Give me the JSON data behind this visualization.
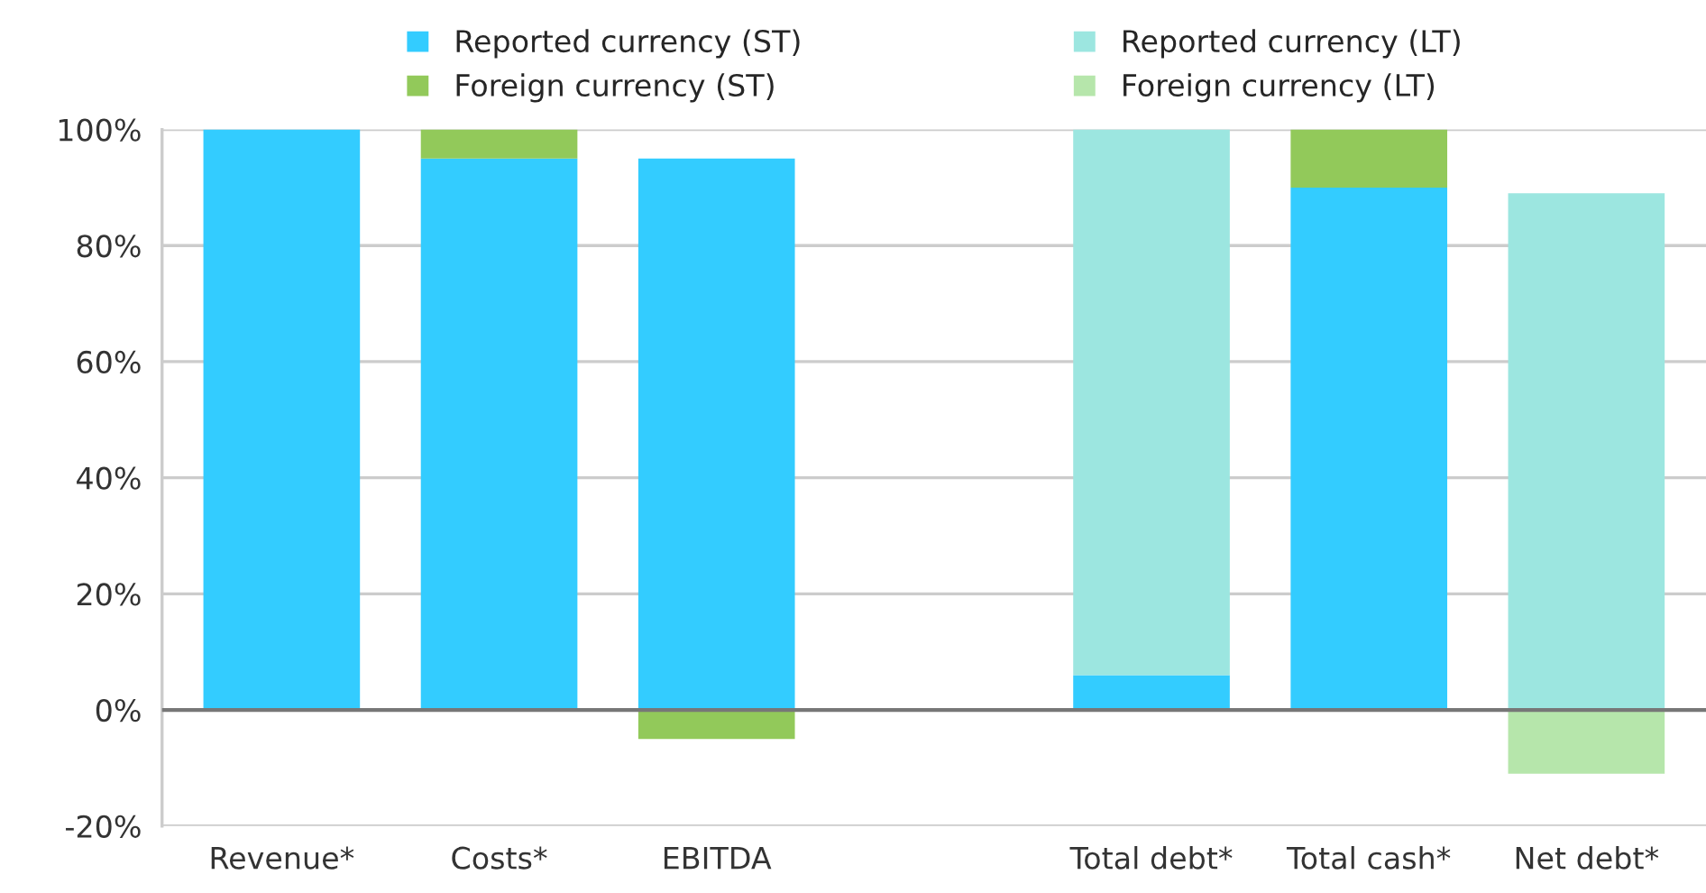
{
  "chart_data": {
    "type": "bar",
    "stacked": true,
    "categories": [
      "Revenue*",
      "Costs*",
      "EBITDA",
      null,
      "Total debt*",
      "Total cash*",
      "Net debt*"
    ],
    "series": [
      {
        "name": "Reported currency (ST)",
        "color": "#33ccff",
        "values": [
          100,
          95,
          95,
          null,
          6,
          90,
          null
        ]
      },
      {
        "name": "Foreign currency (ST)",
        "color": "#92c95a",
        "values": [
          null,
          5,
          -5,
          null,
          null,
          10,
          null
        ]
      },
      {
        "name": "Reported currency (LT)",
        "color": "#9ce6e0",
        "values": [
          null,
          null,
          null,
          null,
          94,
          null,
          89
        ]
      },
      {
        "name": "Foreign currency (LT)",
        "color": "#b6e6ab",
        "values": [
          null,
          null,
          null,
          null,
          null,
          null,
          -11
        ]
      }
    ],
    "ylim": [
      -20,
      100
    ],
    "yticks": [
      {
        "value": -20,
        "label": "-20%"
      },
      {
        "value": 0,
        "label": "0%"
      },
      {
        "value": 20,
        "label": "20%"
      },
      {
        "value": 40,
        "label": "40%"
      },
      {
        "value": 60,
        "label": "60%"
      },
      {
        "value": 80,
        "label": "80%"
      },
      {
        "value": 100,
        "label": "100%"
      }
    ],
    "ref_lines": [
      {
        "axis": "y",
        "value": 0,
        "color": "#777777"
      }
    ],
    "grid": "y",
    "legend": "top"
  }
}
